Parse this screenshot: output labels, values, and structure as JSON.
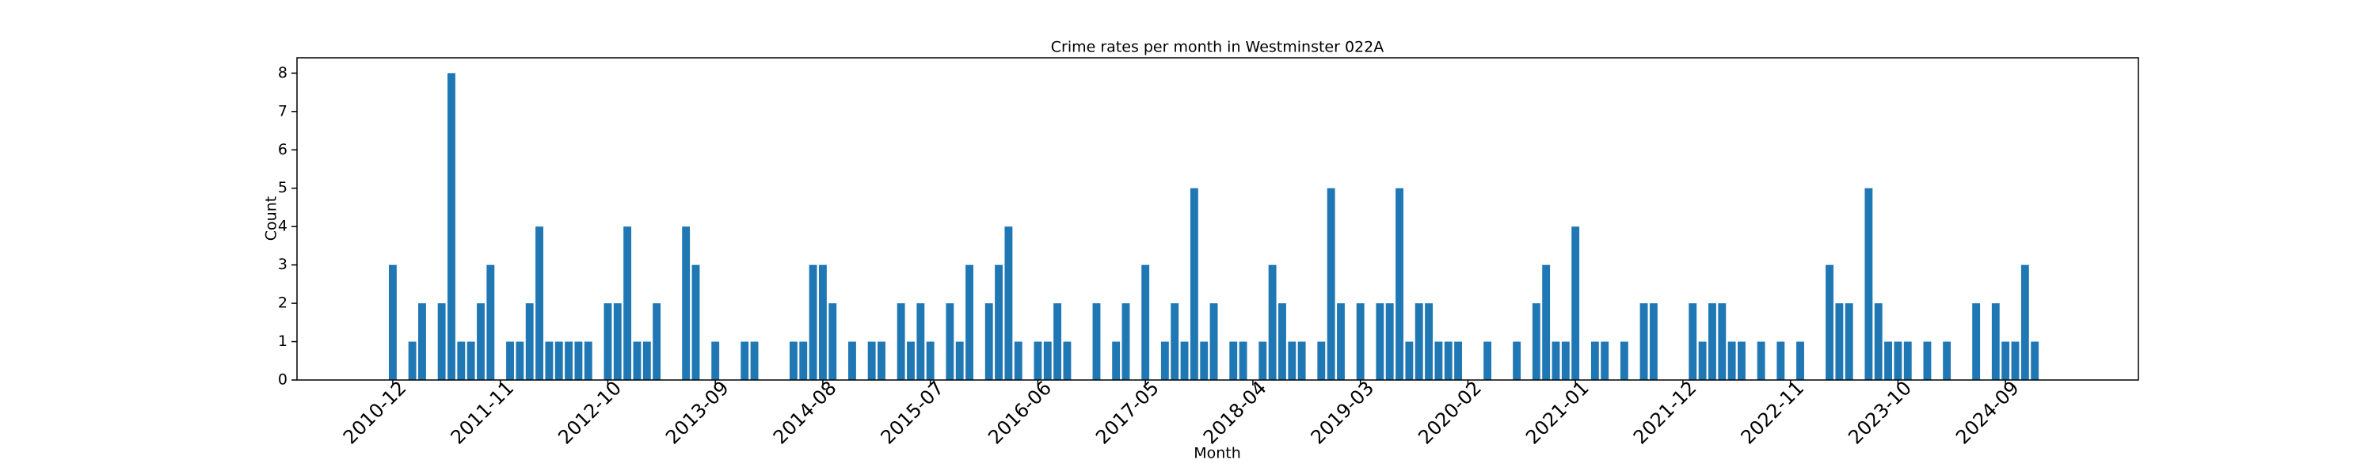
{
  "chart_data": {
    "type": "bar",
    "title": "Crime rates per month in Westminster 022A",
    "x_label": "Month",
    "y_label": "Count",
    "color": "#1f77b4",
    "categories": [
      "2010-12",
      null,
      null,
      null,
      null,
      null,
      null,
      null,
      null,
      null,
      null,
      "2011-11",
      null,
      null,
      null,
      null,
      null,
      null,
      null,
      null,
      null,
      null,
      "2012-10",
      null,
      null,
      null,
      null,
      null,
      null,
      null,
      null,
      null,
      null,
      "2013-09",
      null,
      null,
      null,
      null,
      null,
      null,
      null,
      null,
      null,
      null,
      "2014-08",
      null,
      null,
      null,
      null,
      null,
      null,
      null,
      null,
      null,
      null,
      "2015-07",
      null,
      null,
      null,
      null,
      null,
      null,
      null,
      null,
      null,
      null,
      "2016-06",
      null,
      null,
      null,
      null,
      null,
      null,
      null,
      null,
      null,
      null,
      "2017-05",
      null,
      null,
      null,
      null,
      null,
      null,
      null,
      null,
      null,
      null,
      "2018-04",
      null,
      null,
      null,
      null,
      null,
      null,
      null,
      null,
      null,
      null,
      "2019-03",
      null,
      null,
      null,
      null,
      null,
      null,
      null,
      null,
      null,
      null,
      "2020-02",
      null,
      null,
      null,
      null,
      null,
      null,
      null,
      null,
      null,
      null,
      "2021-01",
      null,
      null,
      null,
      null,
      null,
      null,
      null,
      null,
      null,
      null,
      "2021-12",
      null,
      null,
      null,
      null,
      null,
      null,
      null,
      null,
      null,
      null,
      "2022-11",
      null,
      null,
      null,
      null,
      null,
      null,
      null,
      null,
      null,
      null,
      "2023-10",
      null,
      null,
      null,
      null,
      null,
      null,
      null,
      null,
      null,
      null,
      "2024-09",
      null,
      null,
      null
    ],
    "values": [
      3,
      0,
      1,
      2,
      0,
      2,
      8,
      1,
      1,
      2,
      3,
      0,
      1,
      1,
      2,
      4,
      1,
      1,
      1,
      1,
      1,
      0,
      2,
      2,
      4,
      1,
      1,
      2,
      0,
      0,
      4,
      3,
      0,
      1,
      0,
      0,
      1,
      1,
      0,
      0,
      0,
      1,
      1,
      3,
      3,
      2,
      0,
      1,
      0,
      1,
      1,
      0,
      2,
      1,
      2,
      1,
      0,
      2,
      1,
      3,
      0,
      2,
      3,
      4,
      1,
      0,
      1,
      1,
      2,
      1,
      0,
      0,
      2,
      0,
      1,
      2,
      0,
      3,
      0,
      1,
      2,
      1,
      5,
      1,
      2,
      0,
      1,
      1,
      0,
      1,
      3,
      2,
      1,
      1,
      0,
      1,
      5,
      2,
      0,
      2,
      0,
      2,
      2,
      5,
      1,
      2,
      2,
      1,
      1,
      1,
      0,
      0,
      1,
      0,
      0,
      1,
      0,
      2,
      3,
      1,
      1,
      4,
      0,
      1,
      1,
      0,
      1,
      0,
      2,
      2,
      0,
      0,
      0,
      2,
      1,
      2,
      2,
      1,
      1,
      0,
      1,
      0,
      1,
      0,
      1,
      0,
      0,
      3,
      2,
      2,
      0,
      5,
      2,
      1,
      1,
      1,
      0,
      1,
      0,
      1,
      0,
      0,
      2,
      0,
      2,
      1,
      1,
      3,
      1
    ],
    "ylim": [
      0,
      8.4
    ],
    "yticks": [
      0,
      1,
      2,
      3,
      4,
      5,
      6,
      7,
      8
    ]
  }
}
